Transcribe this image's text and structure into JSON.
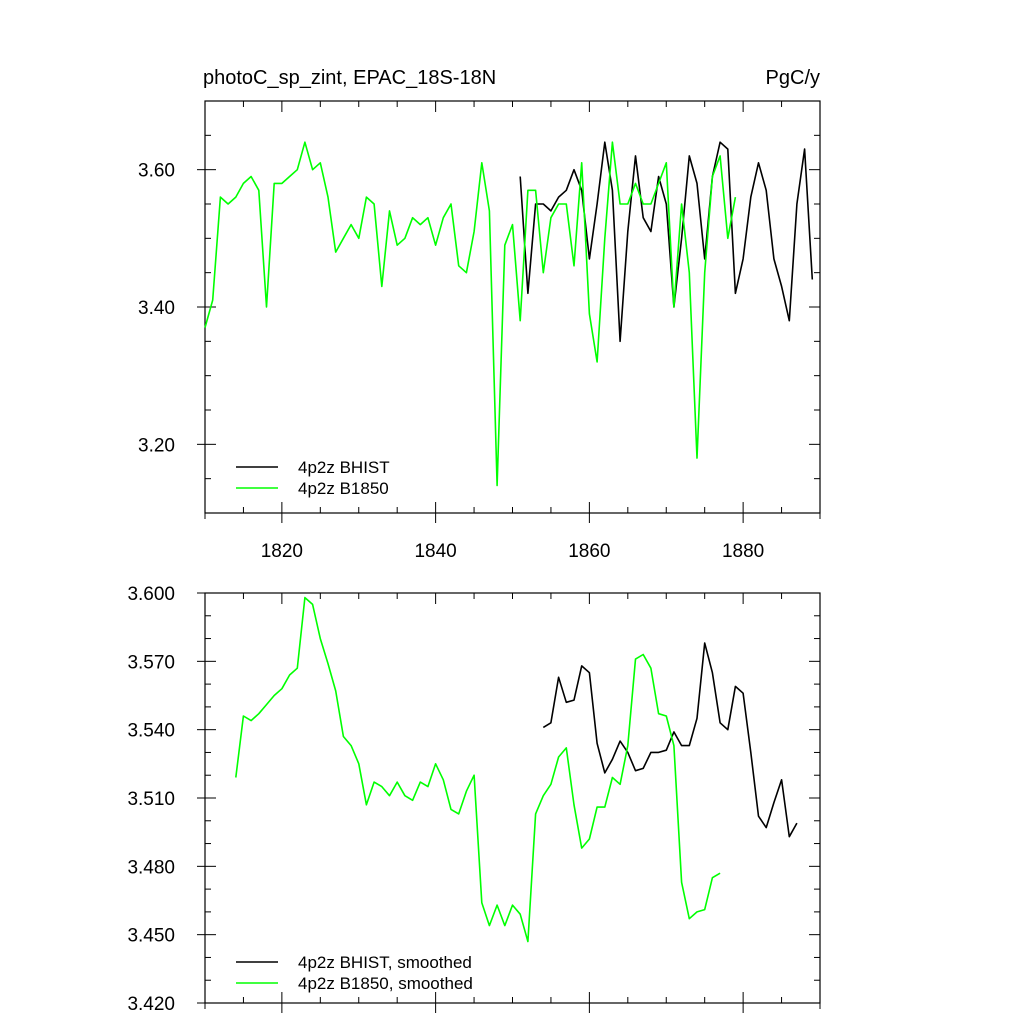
{
  "chart_data": [
    {
      "type": "line",
      "title": "photoC_sp_zint, EPAC_18S-18N",
      "title_right": "PgC/y",
      "xlabel": "",
      "ylabel": "",
      "xlim": [
        1810,
        1890
      ],
      "ylim": [
        3.1,
        3.7
      ],
      "xticks": [
        1820,
        1840,
        1860,
        1880
      ],
      "xtick_labels": [
        "1820",
        "1840",
        "1860",
        "1880"
      ],
      "yticks": [
        3.2,
        3.4,
        3.6
      ],
      "ytick_labels": [
        "3.20",
        "3.40",
        "3.60"
      ],
      "grid": false,
      "legend_position": "bottom-left",
      "series": [
        {
          "name": "4p2z BHIST",
          "color": "#000000",
          "x": [
            1851,
            1852,
            1853,
            1854,
            1855,
            1856,
            1857,
            1858,
            1859,
            1860,
            1861,
            1862,
            1863,
            1864,
            1865,
            1866,
            1867,
            1868,
            1869,
            1870,
            1871,
            1872,
            1873,
            1874,
            1875,
            1876,
            1877,
            1878,
            1879,
            1880,
            1881,
            1882,
            1883,
            1884,
            1885,
            1886,
            1887,
            1888,
            1889
          ],
          "y": [
            3.59,
            3.42,
            3.55,
            3.55,
            3.54,
            3.56,
            3.57,
            3.6,
            3.57,
            3.47,
            3.55,
            3.64,
            3.57,
            3.35,
            3.51,
            3.62,
            3.53,
            3.51,
            3.59,
            3.55,
            3.4,
            3.5,
            3.62,
            3.58,
            3.47,
            3.59,
            3.64,
            3.63,
            3.42,
            3.47,
            3.56,
            3.61,
            3.57,
            3.47,
            3.43,
            3.38,
            3.55,
            3.63,
            3.44
          ]
        },
        {
          "name": "4p2z B1850",
          "color": "#00ff00",
          "x": [
            1810,
            1811,
            1812,
            1813,
            1814,
            1815,
            1816,
            1817,
            1818,
            1819,
            1820,
            1821,
            1822,
            1823,
            1824,
            1825,
            1826,
            1827,
            1828,
            1829,
            1830,
            1831,
            1832,
            1833,
            1834,
            1835,
            1836,
            1837,
            1838,
            1839,
            1840,
            1841,
            1842,
            1843,
            1844,
            1845,
            1846,
            1847,
            1848,
            1849,
            1850,
            1851,
            1852,
            1853,
            1854,
            1855,
            1856,
            1857,
            1858,
            1859,
            1860,
            1861,
            1862,
            1863,
            1864,
            1865,
            1866,
            1867,
            1868,
            1869,
            1870,
            1871,
            1872,
            1873,
            1874,
            1875,
            1876,
            1877,
            1878,
            1879
          ],
          "y": [
            3.37,
            3.41,
            3.56,
            3.55,
            3.56,
            3.58,
            3.59,
            3.57,
            3.4,
            3.58,
            3.58,
            3.59,
            3.6,
            3.64,
            3.6,
            3.61,
            3.56,
            3.48,
            3.5,
            3.52,
            3.5,
            3.56,
            3.55,
            3.43,
            3.54,
            3.49,
            3.5,
            3.53,
            3.52,
            3.53,
            3.49,
            3.53,
            3.55,
            3.46,
            3.45,
            3.51,
            3.61,
            3.54,
            3.14,
            3.49,
            3.52,
            3.38,
            3.57,
            3.57,
            3.45,
            3.53,
            3.55,
            3.55,
            3.46,
            3.61,
            3.39,
            3.32,
            3.5,
            3.64,
            3.55,
            3.55,
            3.58,
            3.55,
            3.55,
            3.58,
            3.61,
            3.4,
            3.55,
            3.45,
            3.18,
            3.45,
            3.59,
            3.62,
            3.5,
            3.56
          ]
        }
      ]
    },
    {
      "type": "line",
      "title": "",
      "xlabel": "",
      "ylabel": "",
      "xlim": [
        1810,
        1890
      ],
      "ylim": [
        3.42,
        3.6
      ],
      "xticks": [
        1820,
        1840,
        1860,
        1880
      ],
      "yticks": [
        3.42,
        3.45,
        3.48,
        3.51,
        3.54,
        3.57,
        3.6
      ],
      "ytick_labels": [
        "3.420",
        "3.450",
        "3.480",
        "3.510",
        "3.540",
        "3.570",
        "3.600"
      ],
      "grid": false,
      "legend_position": "bottom-left",
      "series": [
        {
          "name": "4p2z BHIST, smoothed",
          "color": "#000000",
          "x": [
            1854,
            1855,
            1856,
            1857,
            1858,
            1859,
            1860,
            1861,
            1862,
            1863,
            1864,
            1865,
            1866,
            1867,
            1868,
            1869,
            1870,
            1871,
            1872,
            1873,
            1874,
            1875,
            1876,
            1877,
            1878,
            1879,
            1880,
            1881,
            1882,
            1883,
            1884,
            1885,
            1886,
            1887
          ],
          "y": [
            3.541,
            3.543,
            3.563,
            3.552,
            3.553,
            3.568,
            3.565,
            3.534,
            3.521,
            3.527,
            3.535,
            3.53,
            3.522,
            3.523,
            3.53,
            3.53,
            3.531,
            3.539,
            3.533,
            3.533,
            3.545,
            3.578,
            3.565,
            3.543,
            3.54,
            3.559,
            3.556,
            3.53,
            3.502,
            3.497,
            3.508,
            3.518,
            3.493,
            3.499
          ]
        },
        {
          "name": "4p2z B1850, smoothed",
          "color": "#00ff00",
          "x": [
            1814,
            1815,
            1816,
            1817,
            1818,
            1819,
            1820,
            1821,
            1822,
            1823,
            1824,
            1825,
            1826,
            1827,
            1828,
            1829,
            1830,
            1831,
            1832,
            1833,
            1834,
            1835,
            1836,
            1837,
            1838,
            1839,
            1840,
            1841,
            1842,
            1843,
            1844,
            1845,
            1846,
            1847,
            1848,
            1849,
            1850,
            1851,
            1852,
            1853,
            1854,
            1855,
            1856,
            1857,
            1858,
            1859,
            1860,
            1861,
            1862,
            1863,
            1864,
            1865,
            1866,
            1867,
            1868,
            1869,
            1870,
            1871,
            1872,
            1873,
            1874,
            1875,
            1876,
            1877
          ],
          "y": [
            3.519,
            3.546,
            3.544,
            3.547,
            3.551,
            3.555,
            3.558,
            3.564,
            3.567,
            3.598,
            3.595,
            3.58,
            3.569,
            3.557,
            3.537,
            3.533,
            3.525,
            3.507,
            3.517,
            3.515,
            3.511,
            3.517,
            3.511,
            3.509,
            3.517,
            3.515,
            3.525,
            3.518,
            3.505,
            3.503,
            3.513,
            3.52,
            3.464,
            3.454,
            3.463,
            3.454,
            3.463,
            3.459,
            3.447,
            3.503,
            3.511,
            3.516,
            3.528,
            3.532,
            3.507,
            3.488,
            3.492,
            3.506,
            3.506,
            3.519,
            3.516,
            3.533,
            3.571,
            3.573,
            3.567,
            3.547,
            3.546,
            3.533,
            3.473,
            3.457,
            3.46,
            3.461,
            3.475,
            3.477
          ]
        }
      ]
    }
  ]
}
